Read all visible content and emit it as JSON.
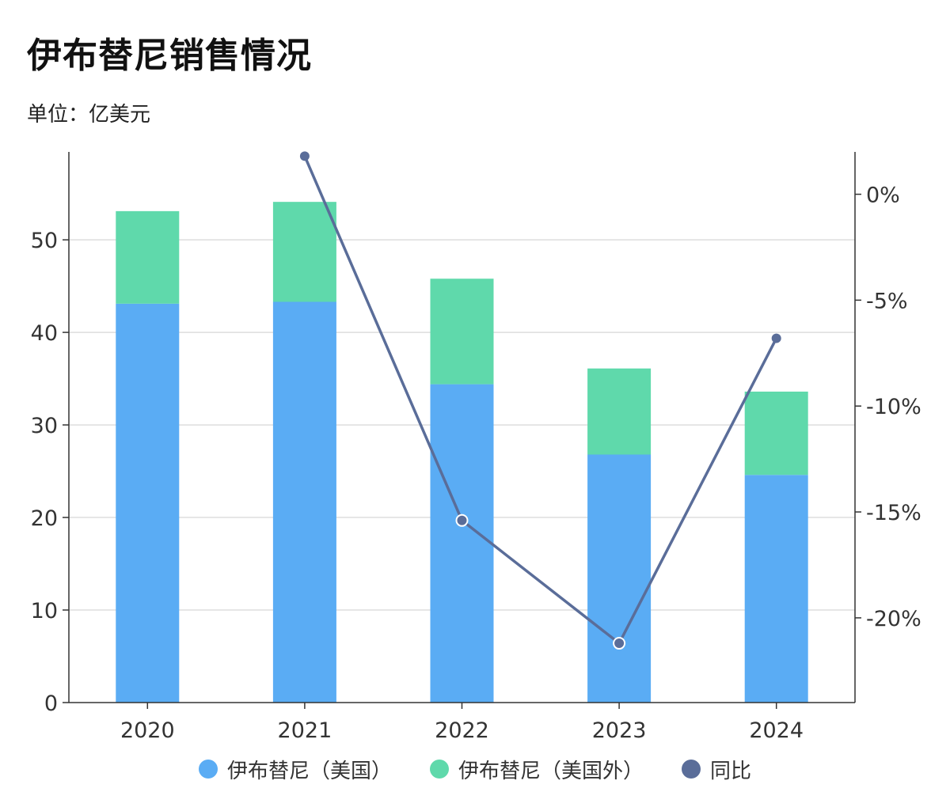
{
  "header": {
    "title": "伊布替尼销售情况",
    "subtitle": "单位：亿美元"
  },
  "colors": {
    "us": "#5aacf4",
    "ex_us": "#5fd9ab",
    "yoy": "#5a6d99",
    "axis": "#333333",
    "grid": "#dddddd"
  },
  "chart_data": {
    "type": "bar",
    "title": "伊布替尼销售情况",
    "subtitle": "单位：亿美元",
    "categories": [
      "2020",
      "2021",
      "2022",
      "2023",
      "2024"
    ],
    "series": [
      {
        "name": "伊布替尼（美国）",
        "kind": "bar",
        "stack": "sales",
        "axis": "left",
        "values": [
          43.1,
          43.3,
          34.4,
          26.8,
          24.6
        ]
      },
      {
        "name": "伊布替尼（美国外）",
        "kind": "bar",
        "stack": "sales",
        "axis": "left",
        "values": [
          10.0,
          10.8,
          11.4,
          9.3,
          9.0
        ]
      },
      {
        "name": "同比",
        "kind": "line",
        "axis": "right",
        "values": [
          null,
          1.8,
          -15.4,
          -21.2,
          -6.8
        ]
      }
    ],
    "left_axis": {
      "min": 0,
      "max": 59.5,
      "ticks": [
        0,
        10,
        20,
        30,
        40,
        50
      ]
    },
    "right_axis": {
      "min": -24,
      "max": 2,
      "ticks": [
        0,
        -5,
        -10,
        -15,
        -20
      ],
      "tick_labels": [
        "0%",
        "-5%",
        "-10%",
        "-15%",
        "-20%"
      ]
    },
    "grid": true,
    "legend_position": "bottom-center"
  }
}
